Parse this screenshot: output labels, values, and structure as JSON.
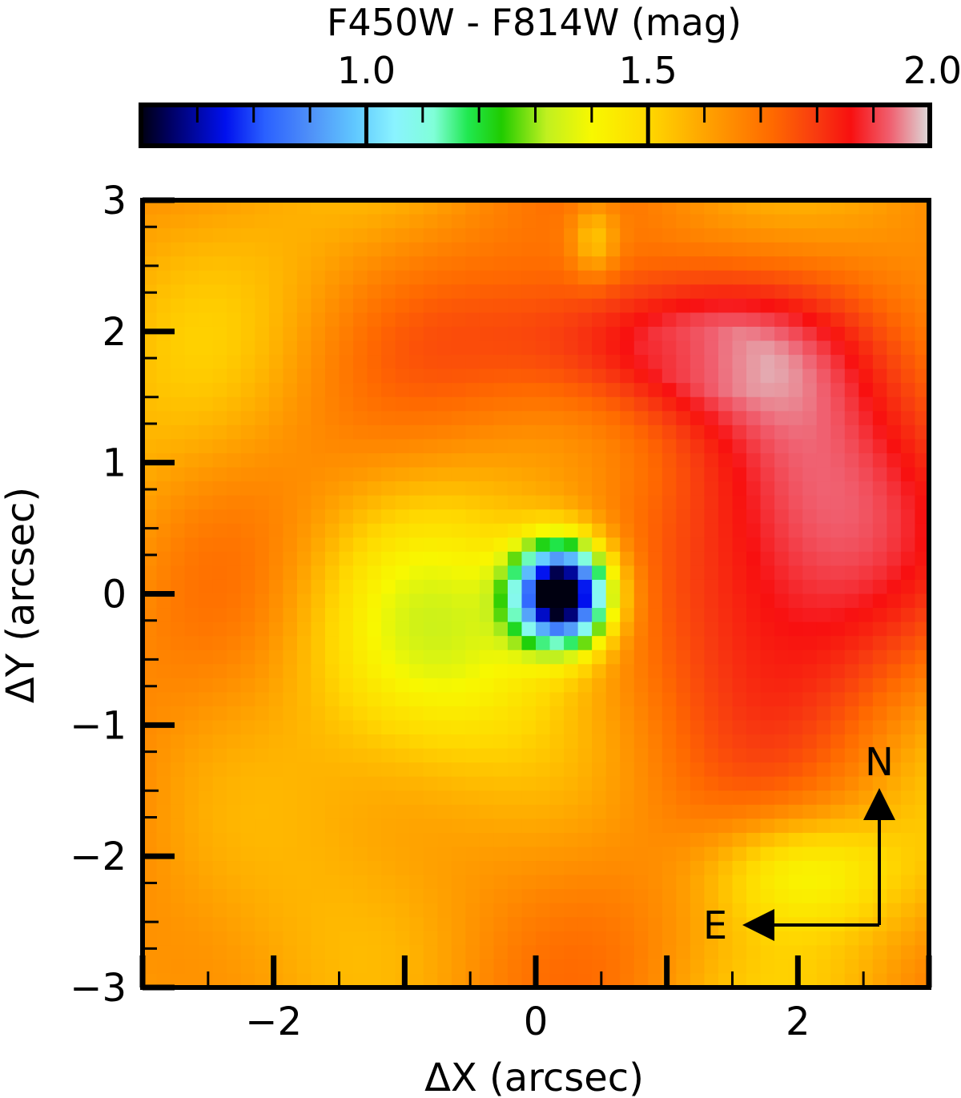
{
  "chart_data": {
    "type": "heatmap",
    "title": "",
    "xlabel": "ΔX (arcsec)",
    "ylabel": "ΔY (arcsec)",
    "xlim": [
      -3,
      3
    ],
    "ylim": [
      -3,
      3
    ],
    "x_ticks": [
      -2,
      0,
      2
    ],
    "y_ticks": [
      -3,
      -2,
      -1,
      0,
      1,
      2,
      3
    ],
    "x_tick_labels": [
      "−2",
      "0",
      "2"
    ],
    "y_tick_labels": [
      "−3",
      "−2",
      "−1",
      "0",
      "1",
      "2",
      "3"
    ],
    "colorbar": {
      "label": "F450W - F814W (mag)",
      "range": [
        0.6,
        2.0
      ],
      "ticks": [
        1.0,
        1.5,
        2.0
      ],
      "tick_labels": [
        "1.0",
        "1.5",
        "2.0"
      ],
      "colormap": [
        [
          0.6,
          "#000010"
        ],
        [
          0.65,
          "#000060"
        ],
        [
          0.75,
          "#0010ee"
        ],
        [
          0.82,
          "#2a60ff"
        ],
        [
          0.9,
          "#4f90f8"
        ],
        [
          0.98,
          "#60c8ff"
        ],
        [
          1.05,
          "#8af3ff"
        ],
        [
          1.12,
          "#80ffd8"
        ],
        [
          1.18,
          "#20e850"
        ],
        [
          1.24,
          "#20cc00"
        ],
        [
          1.32,
          "#c0f020"
        ],
        [
          1.4,
          "#f8f800"
        ],
        [
          1.5,
          "#ffd800"
        ],
        [
          1.62,
          "#ff9a00"
        ],
        [
          1.72,
          "#ff6a00"
        ],
        [
          1.8,
          "#f83a10"
        ],
        [
          1.86,
          "#f81010"
        ],
        [
          1.93,
          "#f06070"
        ],
        [
          2.0,
          "#dcdcdc"
        ]
      ]
    },
    "features": {
      "central_minimum": {
        "x": 0.2,
        "y": 0.0,
        "value": 0.6
      },
      "background_value": 1.62,
      "red_region": "north and west of centre, values 1.8–1.95"
    }
  },
  "compass": {
    "north_label": "N",
    "east_label": "E"
  }
}
